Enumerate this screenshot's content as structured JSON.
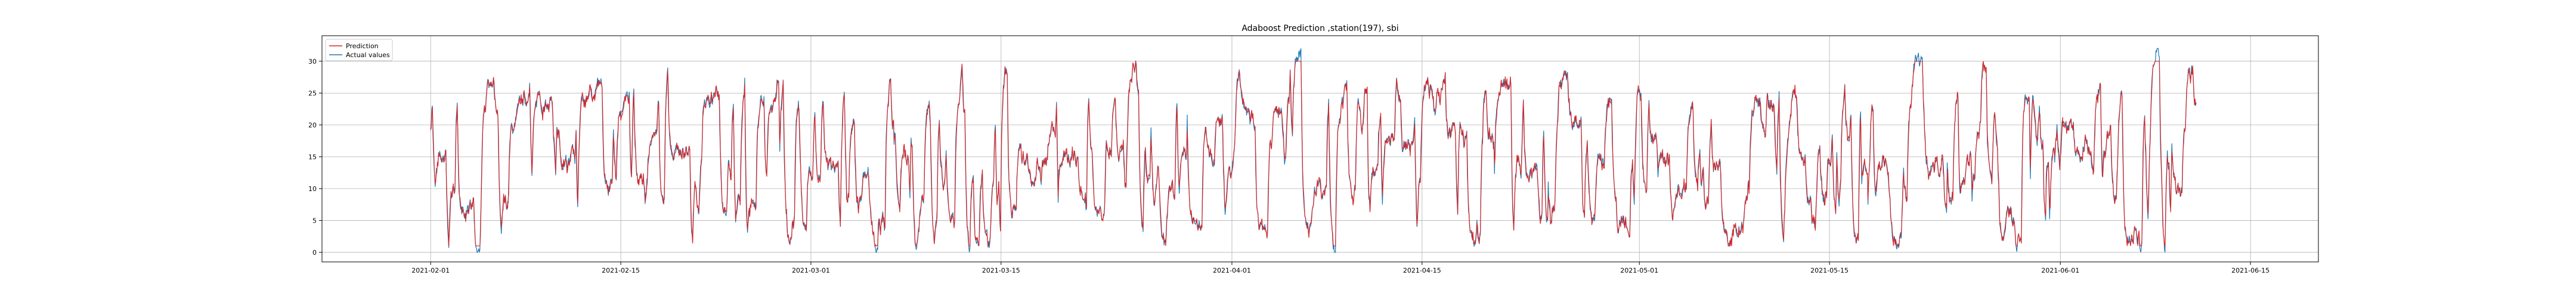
{
  "chart_data": {
    "type": "line",
    "title": "Adaboost Prediction ,station(197), sbi",
    "xlabel": "",
    "ylabel": "",
    "xlim": [
      "2021-01-24",
      "2021-06-20"
    ],
    "ylim": [
      -1.5,
      34
    ],
    "x_ticks": [
      "2021-02-01",
      "2021-02-15",
      "2021-03-01",
      "2021-03-15",
      "2021-04-01",
      "2021-04-15",
      "2021-05-01",
      "2021-05-15",
      "2021-06-01",
      "2021-06-15"
    ],
    "y_ticks": [
      0,
      5,
      10,
      15,
      20,
      25,
      30
    ],
    "grid": true,
    "legend": "upper-left",
    "x_range": [
      "2021-02-01",
      "2021-06-11"
    ],
    "sampling": "hourly",
    "series": [
      {
        "name": "Prediction",
        "color": "#d62728",
        "values": []
      },
      {
        "name": "Actual values",
        "color": "#1f77b4",
        "values": []
      }
    ]
  },
  "colors": {
    "grid": "#b0b0b0",
    "axes": "#000000"
  }
}
